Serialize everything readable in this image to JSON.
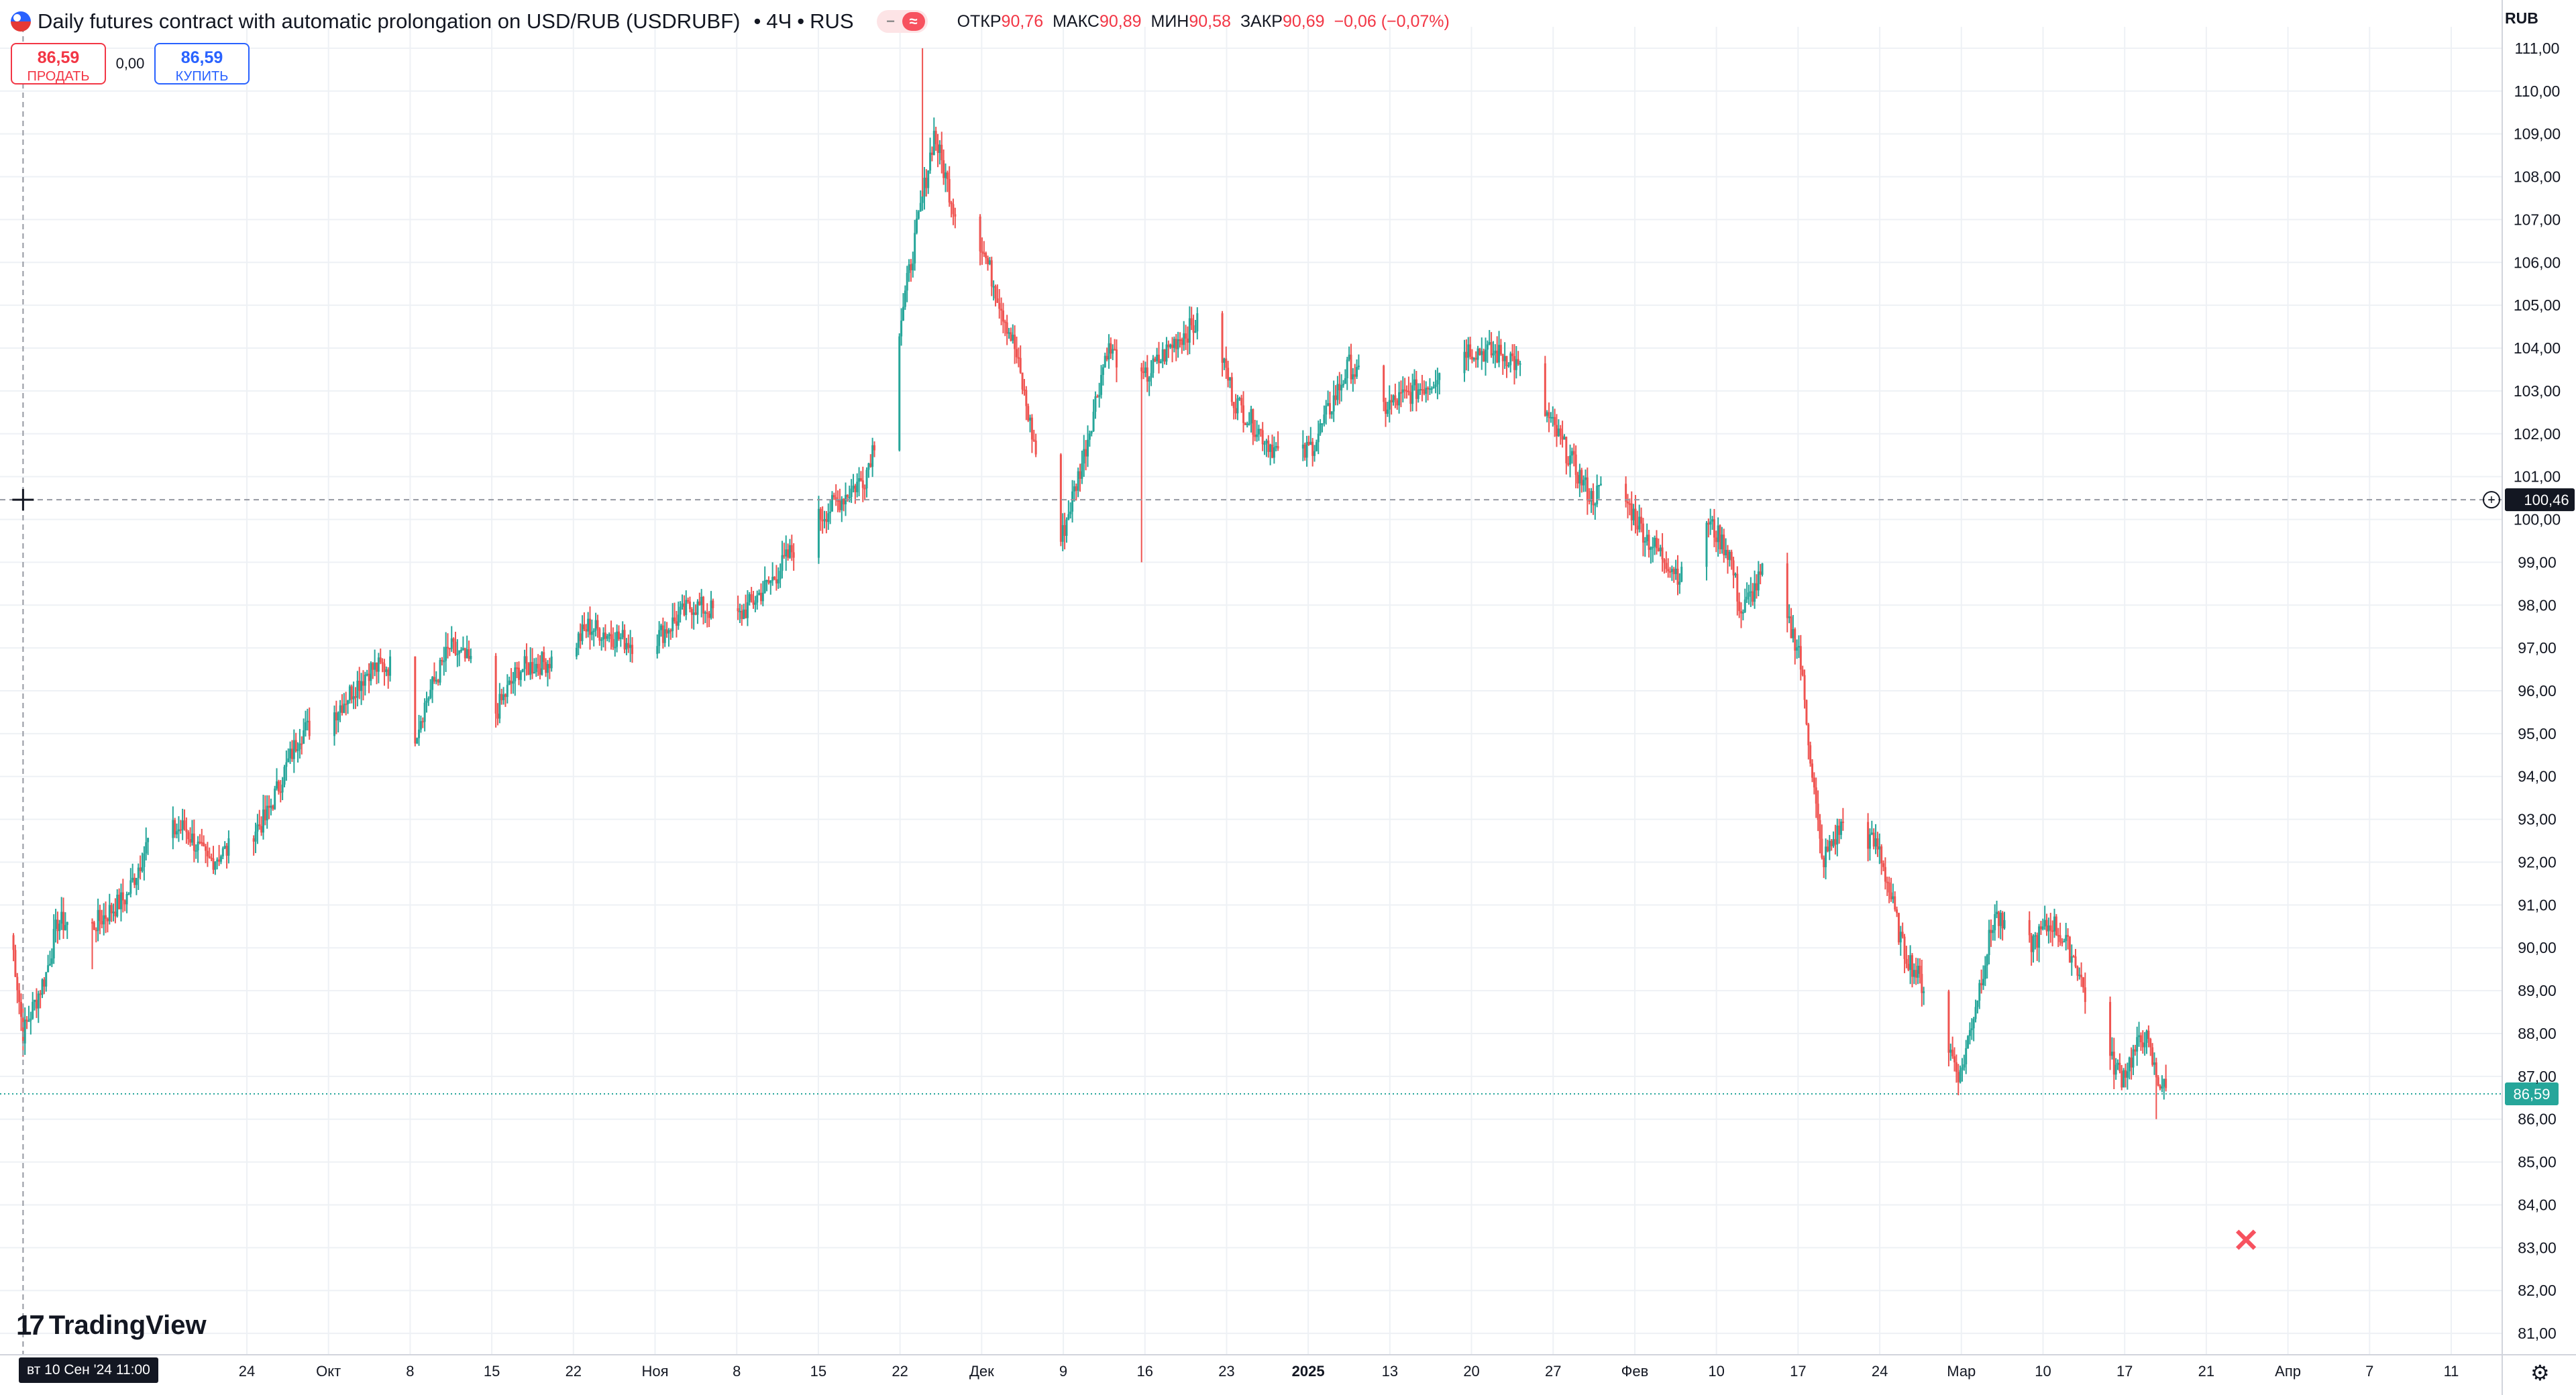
{
  "header": {
    "symbol_title": "Daily futures contract with automatic prolongation on USD/RUB (USDRUBF)",
    "interval": "4Ч",
    "exchange": "RUS",
    "ohlc": {
      "open_label": "ОТКР",
      "open_value": "90,76",
      "high_label": "МАКС",
      "high_value": "90,89",
      "low_label": "МИН",
      "low_value": "90,58",
      "close_label": "ЗАКР",
      "close_value": "90,69",
      "change": "−0,06 (−0,07%)"
    }
  },
  "trade": {
    "sell_price": "86,59",
    "sell_label": "ПРОДАТЬ",
    "spread": "0,00",
    "buy_price": "86,59",
    "buy_label": "КУПИТЬ"
  },
  "scale": {
    "currency": "RUB"
  },
  "crosshair": {
    "date_label": "вт 10 Сен '24   11:00",
    "price_label": "100,46",
    "price": 100.46
  },
  "last_price": {
    "label": "86,59",
    "value": 86.59
  },
  "brand": {
    "name": "TradingView"
  },
  "colors": {
    "up": "#26a69a",
    "down": "#ef5350",
    "grid": "#eef1f5",
    "crosshair": "#9598a1",
    "last_line": "#26a69a",
    "label_bg": "#131722"
  },
  "chart_data": {
    "type": "candlestick",
    "title": "Daily futures contract with automatic prolongation on USD/RUB (USDRUBF)",
    "ylim": [
      80.5,
      111.5
    ],
    "y_ticks": [
      81,
      82,
      83,
      84,
      85,
      86,
      87,
      88,
      89,
      90,
      91,
      92,
      93,
      94,
      95,
      96,
      97,
      98,
      99,
      100,
      101,
      102,
      103,
      104,
      105,
      106,
      107,
      108,
      109,
      110,
      111
    ],
    "x_labels": [
      "24",
      "Окт",
      "8",
      "15",
      "22",
      "Ноя",
      "8",
      "15",
      "22",
      "Дек",
      "9",
      "16",
      "23",
      "2025",
      "13",
      "20",
      "27",
      "Фев",
      "10",
      "17",
      "24",
      "Мар",
      "10",
      "17",
      "21",
      "Апр",
      "7",
      "11"
    ],
    "x_label_bold": [
      "2025"
    ],
    "grid": true,
    "wicks": [
      {
        "date": "2024-09-16",
        "price": 89.5
      },
      {
        "date": "2024-11-27",
        "price": 111.0
      },
      {
        "date": "2024-12-16",
        "price": 99.0
      },
      {
        "date": "2025-03-14",
        "price": 86.0
      }
    ],
    "anchors": [
      {
        "date": "2024-09-09",
        "price": 90.3
      },
      {
        "date": "2024-09-10",
        "price": 88.0
      },
      {
        "date": "2024-09-12",
        "price": 89.4
      },
      {
        "date": "2024-09-13",
        "price": 90.6
      },
      {
        "date": "2024-09-16",
        "price": 90.5
      },
      {
        "date": "2024-09-19",
        "price": 91.2
      },
      {
        "date": "2024-09-21",
        "price": 92.6
      },
      {
        "date": "2024-09-24",
        "price": 92.8
      },
      {
        "date": "2024-09-26",
        "price": 92.0
      },
      {
        "date": "2024-09-29",
        "price": 92.5
      },
      {
        "date": "2024-10-01",
        "price": 93.0
      },
      {
        "date": "2024-10-04",
        "price": 95.0
      },
      {
        "date": "2024-10-07",
        "price": 95.5
      },
      {
        "date": "2024-10-10",
        "price": 96.5
      },
      {
        "date": "2024-10-12",
        "price": 96.6
      },
      {
        "date": "2024-10-14",
        "price": 95.0
      },
      {
        "date": "2024-10-15",
        "price": 95.8
      },
      {
        "date": "2024-10-17",
        "price": 97.0
      },
      {
        "date": "2024-10-19",
        "price": 96.6
      },
      {
        "date": "2024-10-21",
        "price": 95.5
      },
      {
        "date": "2024-10-23",
        "price": 96.5
      },
      {
        "date": "2024-10-27",
        "price": 96.8
      },
      {
        "date": "2024-10-29",
        "price": 97.5
      },
      {
        "date": "2024-11-03",
        "price": 97.0
      },
      {
        "date": "2024-11-07",
        "price": 98.0
      },
      {
        "date": "2024-11-11",
        "price": 97.7
      },
      {
        "date": "2024-11-14",
        "price": 98.6
      },
      {
        "date": "2024-11-17",
        "price": 99.8
      },
      {
        "date": "2024-11-20",
        "price": 100.5
      },
      {
        "date": "2024-11-22",
        "price": 101.0
      },
      {
        "date": "2024-11-24",
        "price": 103.0
      },
      {
        "date": "2024-11-26",
        "price": 106.0
      },
      {
        "date": "2024-11-28",
        "price": 109.0
      },
      {
        "date": "2024-11-30",
        "price": 107.0
      },
      {
        "date": "2024-12-02",
        "price": 106.5
      },
      {
        "date": "2024-12-05",
        "price": 104.0
      },
      {
        "date": "2024-12-08",
        "price": 100.0
      },
      {
        "date": "2024-12-09",
        "price": 99.5
      },
      {
        "date": "2024-12-11",
        "price": 101.5
      },
      {
        "date": "2024-12-13",
        "price": 104.0
      },
      {
        "date": "2024-12-16",
        "price": 103.2
      },
      {
        "date": "2024-12-19",
        "price": 104.2
      },
      {
        "date": "2024-12-22",
        "price": 104.8
      },
      {
        "date": "2024-12-24",
        "price": 102.8
      },
      {
        "date": "2024-12-27",
        "price": 101.8
      },
      {
        "date": "2024-12-29",
        "price": 101.2
      },
      {
        "date": "2024-12-31",
        "price": 101.8
      },
      {
        "date": "2025-01-03",
        "price": 103.6
      },
      {
        "date": "2025-01-06",
        "price": 102.6
      },
      {
        "date": "2025-01-10",
        "price": 103.2
      },
      {
        "date": "2025-01-13",
        "price": 104.0
      },
      {
        "date": "2025-01-17",
        "price": 103.8
      },
      {
        "date": "2025-01-20",
        "price": 102.5
      },
      {
        "date": "2025-01-24",
        "price": 100.5
      },
      {
        "date": "2025-01-26",
        "price": 100.9
      },
      {
        "date": "2025-01-29",
        "price": 99.5
      },
      {
        "date": "2025-02-01",
        "price": 98.6
      },
      {
        "date": "2025-02-03",
        "price": 100.0
      },
      {
        "date": "2025-02-05",
        "price": 99.2
      },
      {
        "date": "2025-02-06",
        "price": 97.8
      },
      {
        "date": "2025-02-08",
        "price": 98.8
      },
      {
        "date": "2025-02-11",
        "price": 97.0
      },
      {
        "date": "2025-02-13",
        "price": 92.0
      },
      {
        "date": "2025-02-15",
        "price": 93.0
      },
      {
        "date": "2025-02-18",
        "price": 92.3
      },
      {
        "date": "2025-02-20",
        "price": 90.0
      },
      {
        "date": "2025-02-22",
        "price": 89.0
      },
      {
        "date": "2025-02-25",
        "price": 87.0
      },
      {
        "date": "2025-02-28",
        "price": 90.8
      },
      {
        "date": "2025-03-02",
        "price": 89.8
      },
      {
        "date": "2025-03-05",
        "price": 90.6
      },
      {
        "date": "2025-03-07",
        "price": 89.7
      },
      {
        "date": "2025-03-09",
        "price": 87.8
      },
      {
        "date": "2025-03-11",
        "price": 87.0
      },
      {
        "date": "2025-03-13",
        "price": 88.0
      },
      {
        "date": "2025-03-14",
        "price": 87.0
      },
      {
        "date": "2025-03-15",
        "price": 86.6
      }
    ]
  }
}
